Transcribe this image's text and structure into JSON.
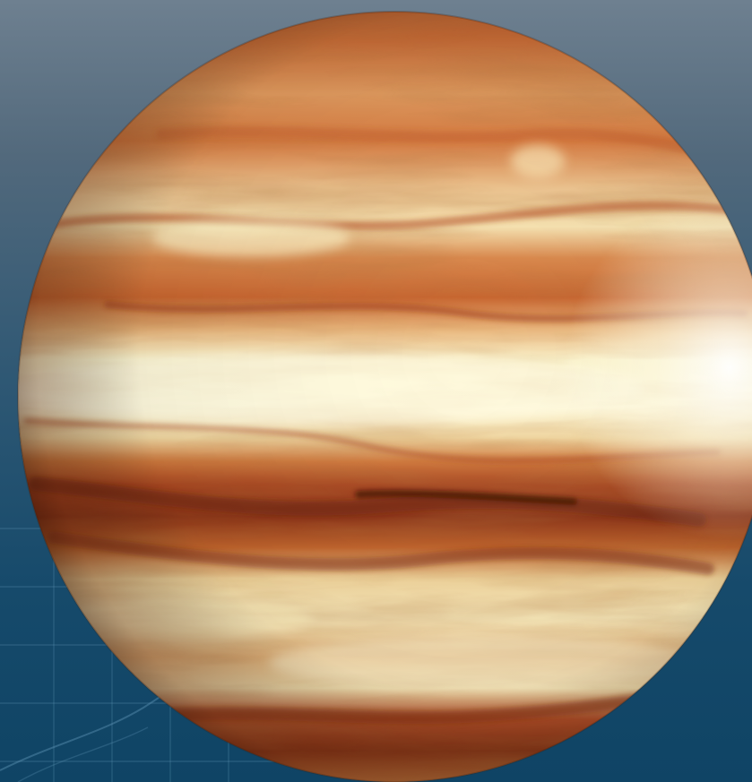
{
  "image": {
    "subject": "gas-giant-planet",
    "background_colors": [
      "#6e8090",
      "#2f5874",
      "#0f4465"
    ],
    "band_colors": [
      "#c8652a",
      "#e9c48c",
      "#fbf2c6",
      "#a8431f",
      "#7a2c16"
    ]
  }
}
